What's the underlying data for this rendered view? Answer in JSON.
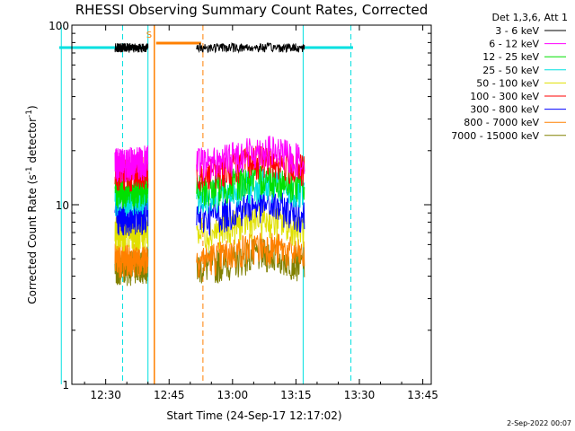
{
  "chart_data": {
    "type": "line",
    "title": "RHESSI Observing Summary Count Rates, Corrected",
    "xlabel": "Start Time (24-Sep-17 12:17:02)",
    "ylabel_main": "Corrected Count Rate (s",
    "ylabel_sup1": "-1",
    "ylabel_mid": " detector",
    "ylabel_sup2": "-1",
    "ylabel_end": ")",
    "yscale": "log",
    "ylim": [
      1,
      100
    ],
    "xlim_minutes": [
      747,
      813
    ],
    "x_ticks": [
      {
        "m": 750,
        "label": "12:30"
      },
      {
        "m": 765,
        "label": "12:45"
      },
      {
        "m": 780,
        "label": "13:00"
      },
      {
        "m": 795,
        "label": "13:15"
      },
      {
        "m": 810,
        "label": "13:30"
      },
      {
        "m": 825,
        "label": "13:45"
      }
    ],
    "y_ticks": [
      {
        "v": 1,
        "label": "1"
      },
      {
        "v": 10,
        "label": "10"
      },
      {
        "v": 100,
        "label": "100"
      }
    ],
    "legend_title": "Det 1,3,6, Att 1",
    "legend_position": "top-right",
    "series": [
      {
        "name": "3 - 6 keV",
        "color": "#000000",
        "level": 75
      },
      {
        "name": "6 - 12 keV",
        "color": "#ff00ff",
        "level": 17
      },
      {
        "name": "12 - 25 keV",
        "color": "#00e000",
        "level": 12
      },
      {
        "name": "25 - 50 keV",
        "color": "#00e0e0",
        "level": 11
      },
      {
        "name": "50 - 100 keV",
        "color": "#e0e000",
        "level": 7
      },
      {
        "name": "100 - 300 keV",
        "color": "#ff0000",
        "level": 15
      },
      {
        "name": "300 - 800 keV",
        "color": "#0000ff",
        "level": 8.5
      },
      {
        "name": "800 - 7000 keV",
        "color": "#ff8000",
        "level": 5
      },
      {
        "name": "7000 - 15000 keV",
        "color": "#808000",
        "level": 4.5
      }
    ],
    "intervals": [
      {
        "start": 752.2,
        "end": 760.0,
        "peak": 770
      },
      {
        "start": 771.5,
        "end": 797.0,
        "peak": 787
      }
    ],
    "annotations": {
      "saa_label": "S",
      "saa_start": 761.5,
      "saa_end": 773.0,
      "night_segments": [
        [
          739,
          760
        ],
        [
          796.5,
          808.5
        ]
      ],
      "night_level": 75,
      "day_solid": [
        739.5,
        760.0,
        796.7
      ],
      "day_dashed": [
        754.0,
        808.0
      ],
      "orange_dashed": [
        773.0
      ]
    },
    "timestamp": "2-Sep-2022 00:07"
  }
}
